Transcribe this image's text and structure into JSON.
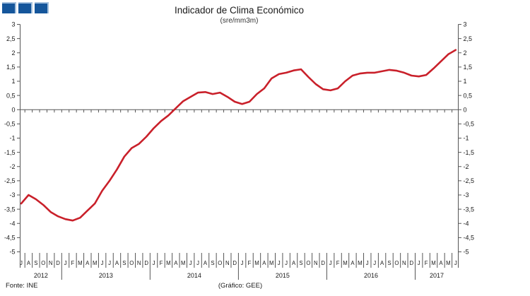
{
  "header": {
    "title": "Indicador de Clima Económico",
    "subtitle": "(sre/mm3m)"
  },
  "footer": {
    "source": "Fonte: INE",
    "credit": "(Gráfico: GEE)"
  },
  "colors": {
    "line": "#c9202a",
    "axis": "#555555",
    "tick_text": "#1a1a1a",
    "logo_blue": "#15569b",
    "logo_edge": "#a3c0dd"
  },
  "y_axis": {
    "max": 3,
    "min": -5,
    "step": 0.5,
    "labels": [
      "3",
      "2,5",
      "2",
      "1,5",
      "1",
      "0,5",
      "0",
      "-0,5",
      "-1",
      "-1,5",
      "-2",
      "-2,5",
      "-3",
      "-3,5",
      "-4",
      "-4,5",
      "-5"
    ]
  },
  "chart_data": {
    "type": "line",
    "title": "Indicador de Clima Económico",
    "subtitle": "(sre/mm3m)",
    "ylim": [
      -5,
      3
    ],
    "ytick_step": 0.5,
    "grid": false,
    "legend": "none",
    "line_color": "#c9202a",
    "x_start": "Jul 2012",
    "x_end": "Jun 2017",
    "years": [
      {
        "label": "2012",
        "months": [
          "J",
          "A",
          "S",
          "O",
          "N",
          "D"
        ]
      },
      {
        "label": "2013",
        "months": [
          "J",
          "F",
          "M",
          "A",
          "M",
          "J",
          "J",
          "A",
          "S",
          "O",
          "N",
          "D"
        ]
      },
      {
        "label": "2014",
        "months": [
          "J",
          "F",
          "M",
          "A",
          "M",
          "J",
          "J",
          "A",
          "S",
          "O",
          "N",
          "D"
        ]
      },
      {
        "label": "2015",
        "months": [
          "J",
          "F",
          "M",
          "A",
          "M",
          "J",
          "J",
          "A",
          "S",
          "O",
          "N",
          "D"
        ]
      },
      {
        "label": "2016",
        "months": [
          "J",
          "F",
          "M",
          "A",
          "M",
          "J",
          "J",
          "A",
          "S",
          "O",
          "N",
          "D"
        ]
      },
      {
        "label": "2017",
        "months": [
          "J",
          "F",
          "M",
          "A",
          "M",
          "J"
        ]
      }
    ],
    "series": [
      {
        "values": [
          -3.3,
          -3.0,
          -3.15,
          -3.35,
          -3.6,
          -3.75,
          -3.85,
          -3.9,
          -3.8,
          -3.55,
          -3.3,
          -2.85,
          -2.5,
          -2.1,
          -1.65,
          -1.35,
          -1.2,
          -0.95,
          -0.65,
          -0.4,
          -0.2,
          0.05,
          0.3,
          0.45,
          0.6,
          0.62,
          0.55,
          0.6,
          0.45,
          0.28,
          0.2,
          0.28,
          0.55,
          0.75,
          1.1,
          1.25,
          1.3,
          1.38,
          1.42,
          1.15,
          0.9,
          0.72,
          0.68,
          0.75,
          1.0,
          1.2,
          1.27,
          1.3,
          1.3,
          1.35,
          1.4,
          1.37,
          1.3,
          1.2,
          1.17,
          1.22,
          1.45,
          1.7,
          1.95,
          2.1
        ]
      }
    ]
  }
}
